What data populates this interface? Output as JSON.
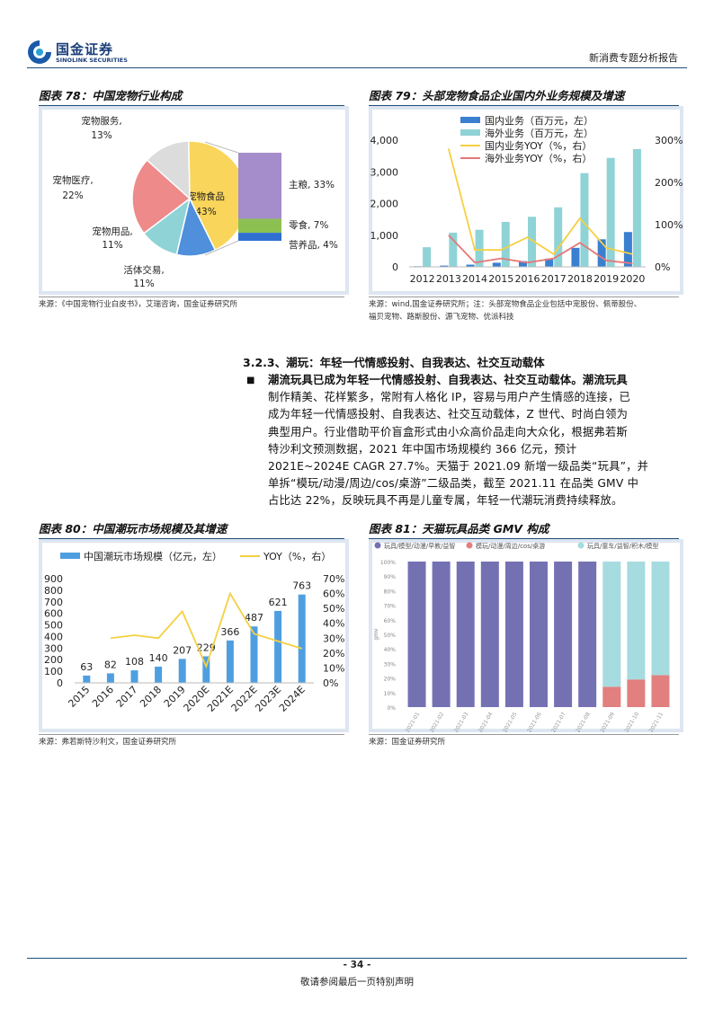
{
  "header": {
    "logo_cn": "国金证券",
    "logo_en": "SINOLINK SECURITIES",
    "report_type": "新消费专题分析报告"
  },
  "fig78": {
    "title": "图表 78：中国宠物行业构成",
    "source": "来源：《中国宠物行业白皮书》，艾瑞咨询，国金证券研究所",
    "slices": [
      {
        "label": "宠物食品",
        "value": "43%",
        "color": "#f9d55b"
      },
      {
        "label": "活体交易,",
        "value": "11%",
        "color": "#4f8fdc"
      },
      {
        "label": "宠物用品,",
        "value": "11%",
        "color": "#8fd3d6"
      },
      {
        "label": "宠物医疗,",
        "value": "22%",
        "color": "#ee8a8a"
      },
      {
        "label": "宠物服务,",
        "value": "13%",
        "color": "#dcdcdc"
      }
    ],
    "breakdown": [
      {
        "label": "主粮, 33%",
        "color": "#a58cca"
      },
      {
        "label": "零食, 7%",
        "color": "#8cc152"
      },
      {
        "label": "营养品, 4%",
        "color": "#2f6fd0"
      }
    ]
  },
  "fig79": {
    "title": "图表 79：头部宠物食品企业国内外业务规模及增速",
    "source_lines": [
      "来源：wind,国金证券研究所；注：头部宠物食品企业包括中宠股份、佩蒂股份、",
      "福贝宠物、路斯股份、源飞宠物、优派科技"
    ],
    "legend": [
      "国内业务（百万元，左）",
      "海外业务（百万元，左）",
      "国内业务YOY（%，右）",
      "海外业务YOY（%，右）"
    ],
    "y_left_ticks": [
      "4,000",
      "3,000",
      "2,000",
      "1,000",
      "0"
    ],
    "y_right_ticks": [
      "300%",
      "200%",
      "100%",
      "0%"
    ]
  },
  "section": {
    "heading": "3.2.3、潮玩：年轻一代情感投射、自我表达、社交互动载体",
    "bullet": "■",
    "para_lines": [
      "潮流玩具已成为年轻一代情感投射、自我表达、社交互动载体。潮流玩具",
      "制作精美、花样繁多，常附有人格化 IP，容易与用户产生情感的连接，已",
      "成为年轻一代情感投射、自我表达、社交互动载体，Z 世代、时尚白领为",
      "典型用户。行业借助平价盲盒形式由小众高价品走向大众化，根据弗若斯",
      "特沙利文预测数据，2021 年中国市场规模约 366 亿元，预计",
      "2021E~2024E CAGR 27.7%。天猫于 2021.09 新增一级品类“玩具”，并",
      "单拆“模玩/动漫/周边/cos/桌游”二级品类，截至 2021.11 在品类 GMV 中",
      "占比达 22%，反映玩具不再是儿童专属，年轻一代潮玩消费持续释放。"
    ]
  },
  "fig80": {
    "title": "图表 80：中国潮玩市场规模及其增速",
    "source": "来源：弗若斯特沙利文，国金证券研究所",
    "legend_bar": "中国潮玩市场规模（亿元，左）",
    "legend_line": "YOY（%，右）",
    "y_left_ticks": [
      "900",
      "800",
      "700",
      "600",
      "500",
      "400",
      "300",
      "200",
      "100",
      "0"
    ],
    "y_right_ticks": [
      "70%",
      "60%",
      "50%",
      "40%",
      "30%",
      "20%",
      "10%",
      "0%"
    ]
  },
  "fig81": {
    "title": "图表 81：天猫玩具品类 GMV 构成",
    "source": "来源：国金证券研究所",
    "legend": [
      "玩具/模型/动漫/早教/益智",
      "模玩/动漫/周边/cos/桌游",
      "玩具/童车/益智/积木/模型"
    ],
    "y_ticks": [
      "100%",
      "90%",
      "80%",
      "70%",
      "60%",
      "50%",
      "40%",
      "30%",
      "20%",
      "10%",
      "0%"
    ],
    "y_axis_label": "gmv"
  },
  "footer": {
    "page": "- 34 -",
    "disclaimer": "敬请参阅最后一页特别声明"
  },
  "chart_data": [
    {
      "type": "pie",
      "title": "图表 78：中国宠物行业构成",
      "categories": [
        "宠物食品",
        "活体交易",
        "宠物用品",
        "宠物医疗",
        "宠物服务"
      ],
      "values": [
        43,
        11,
        11,
        22,
        13
      ],
      "breakdown_of": "宠物食品",
      "breakdown": {
        "categories": [
          "主粮",
          "零食",
          "营养品"
        ],
        "values": [
          33,
          7,
          4
        ]
      }
    },
    {
      "type": "bar",
      "title": "图表 79：头部宠物食品企业国内外业务规模及增速",
      "categories": [
        "2012",
        "2013",
        "2014",
        "2015",
        "2016",
        "2017",
        "2018",
        "2019",
        "2020"
      ],
      "ylim": [
        0,
        4000
      ],
      "y2lim": [
        0,
        300
      ],
      "series": [
        {
          "name": "国内业务（百万元，左）",
          "type": "bar",
          "axis": "left",
          "color": "#3a7fd0",
          "values": [
            20,
            40,
            70,
            130,
            180,
            260,
            600,
            870,
            1100
          ]
        },
        {
          "name": "海外业务（百万元，左）",
          "type": "bar",
          "axis": "left",
          "color": "#8fd3d6",
          "values": [
            620,
            1080,
            1170,
            1420,
            1580,
            1880,
            2960,
            3440,
            3720
          ]
        },
        {
          "name": "国内业务YOY（%，右）",
          "type": "line",
          "axis": "right",
          "color": "#f5d042",
          "values": [
            null,
            280,
            40,
            40,
            70,
            30,
            115,
            45,
            30
          ]
        },
        {
          "name": "海外业务YOY（%，右）",
          "type": "line",
          "axis": "right",
          "color": "#e57878",
          "values": [
            null,
            75,
            10,
            20,
            10,
            20,
            57,
            15,
            8
          ]
        }
      ]
    },
    {
      "type": "bar",
      "title": "图表 80：中国潮玩市场规模及其增速",
      "categories": [
        "2015",
        "2016",
        "2017",
        "2018",
        "2019",
        "2020E",
        "2021E",
        "2022E",
        "2023E",
        "2024E"
      ],
      "ylim": [
        0,
        900
      ],
      "y2lim": [
        0,
        70
      ],
      "series": [
        {
          "name": "中国潮玩市场规模（亿元，左）",
          "type": "bar",
          "axis": "left",
          "color": "#4f9fe0",
          "values": [
            63,
            82,
            108,
            140,
            207,
            229,
            366,
            487,
            621,
            763
          ]
        },
        {
          "name": "YOY（%，右）",
          "type": "line",
          "axis": "right",
          "color": "#f5d042",
          "values": [
            null,
            30,
            32,
            30,
            48,
            11,
            60,
            33,
            28,
            23
          ]
        }
      ]
    },
    {
      "type": "bar",
      "stacked": true,
      "title": "图表 81：天猫玩具品类 GMV 构成",
      "categories": [
        "2021-01",
        "2021-02",
        "2021-03",
        "2021-04",
        "2021-05",
        "2021-06",
        "2021-07",
        "2021-08",
        "2021-09",
        "2021-10",
        "2021-11"
      ],
      "ylim": [
        0,
        100
      ],
      "series": [
        {
          "name": "玩具/模型/动漫/早教/益智",
          "color": "#7471b3",
          "values": [
            100,
            100,
            100,
            100,
            100,
            100,
            100,
            100,
            0,
            0,
            0
          ]
        },
        {
          "name": "模玩/动漫/周边/cos/桌游",
          "color": "#e27f7f",
          "values": [
            0,
            0,
            0,
            0,
            0,
            0,
            0,
            0,
            14,
            19,
            22
          ]
        },
        {
          "name": "玩具/童车/益智/积木/模型",
          "color": "#a6dbe0",
          "values": [
            0,
            0,
            0,
            0,
            0,
            0,
            0,
            0,
            86,
            81,
            78
          ]
        }
      ]
    }
  ]
}
